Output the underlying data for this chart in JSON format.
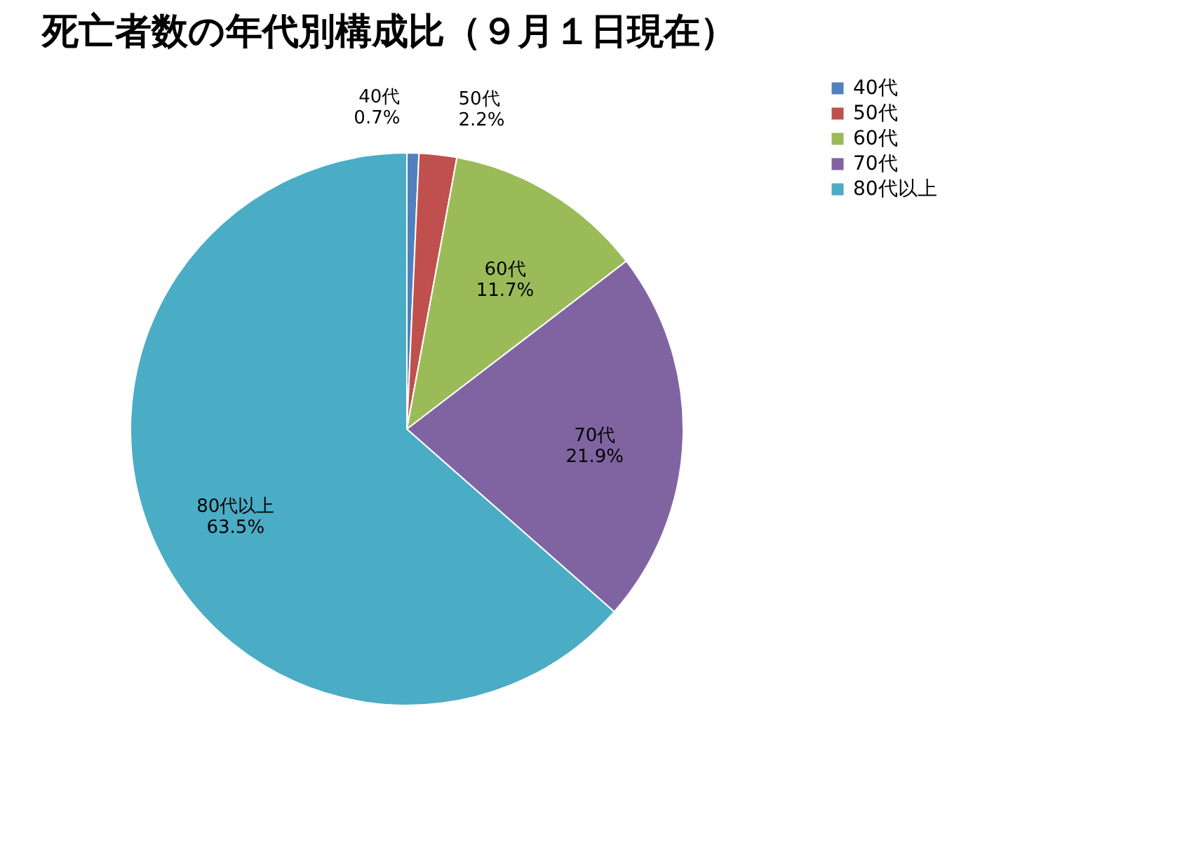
{
  "chart_data": {
    "type": "pie",
    "title": "死亡者数の年代別構成比（９月１日現在）",
    "categories": [
      "40代",
      "50代",
      "60代",
      "70代",
      "80代以上"
    ],
    "values": [
      0.7,
      2.2,
      11.7,
      21.9,
      63.5
    ],
    "colors": [
      "#4f81bd",
      "#c0504d",
      "#9bbb59",
      "#8064a2",
      "#4bacc6"
    ],
    "value_labels": [
      "0.7%",
      "2.2%",
      "11.7%",
      "21.9%",
      "63.5%"
    ],
    "legend": "right"
  }
}
